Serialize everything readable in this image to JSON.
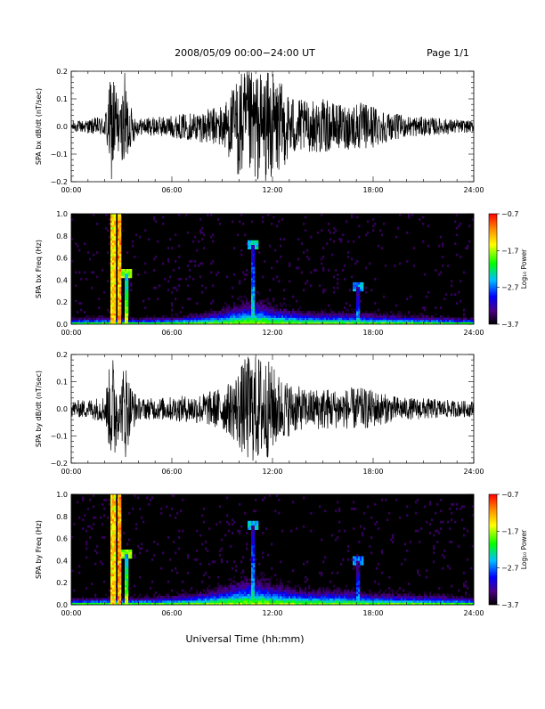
{
  "header": {
    "date_range": "2008/05/09  00:00−24:00 UT",
    "page": "Page 1/1"
  },
  "x_axis_title": "Universal Time (hh:mm)",
  "chart_data": [
    {
      "type": "line",
      "ylabel": "SPA bx dB/dt (nT/sec)",
      "xlim": [
        0,
        24
      ],
      "ylim": [
        -0.2,
        0.2
      ],
      "x_ticks": [
        "00:00",
        "06:00",
        "12:00",
        "18:00",
        "24:00"
      ],
      "y_ticks": [
        "0.2",
        "0.1",
        "0.0",
        "−0.1",
        "−0.2"
      ],
      "envelope": {
        "x_hours": [
          0,
          1,
          2,
          2.4,
          2.6,
          2.9,
          3.2,
          3.5,
          4,
          5,
          6,
          7,
          8,
          9,
          9.5,
          10,
          10.5,
          11,
          11.5,
          12,
          12.5,
          13,
          14,
          15,
          16,
          17,
          18,
          19,
          20,
          21,
          22,
          23,
          24
        ],
        "amplitude": [
          0.02,
          0.025,
          0.04,
          0.2,
          0.2,
          0.06,
          0.2,
          0.08,
          0.03,
          0.035,
          0.04,
          0.05,
          0.06,
          0.08,
          0.12,
          0.2,
          0.2,
          0.2,
          0.2,
          0.2,
          0.16,
          0.12,
          0.09,
          0.1,
          0.08,
          0.09,
          0.08,
          0.05,
          0.04,
          0.035,
          0.03,
          0.025,
          0.02
        ]
      }
    },
    {
      "type": "heatmap",
      "ylabel": "SPA bx Freq (Hz)",
      "xlim": [
        0,
        24
      ],
      "ylim": [
        0.0,
        1.0
      ],
      "x_ticks": [
        "00:00",
        "06:00",
        "12:00",
        "18:00",
        "24:00"
      ],
      "y_ticks": [
        "1.0",
        "0.8",
        "0.6",
        "0.4",
        "0.2",
        "0.0"
      ],
      "colorbar": {
        "label": "Log₁₀ Power",
        "ticks": [
          "−0.7",
          "−1.7",
          "−2.7",
          "−3.7"
        ],
        "range": [
          -3.7,
          -0.7
        ]
      },
      "features": [
        {
          "x_hours": 2.5,
          "f_max": 1.0,
          "power": -1.2
        },
        {
          "x_hours": 2.9,
          "f_max": 1.0,
          "power": -1.0
        },
        {
          "x_hours": 3.3,
          "f_max": 0.45,
          "power": -1.6
        },
        {
          "x_hours": 10.8,
          "f_max": 0.72,
          "power": -2.2
        },
        {
          "x_hours": 17.1,
          "f_max": 0.33,
          "power": -2.4
        }
      ],
      "low_band_level": [
        {
          "x_hours": [
            0,
            2,
            4,
            6,
            8,
            9,
            10,
            11,
            12,
            13,
            14,
            16,
            18,
            20,
            22,
            24
          ],
          "f_extent": [
            0.04,
            0.05,
            0.04,
            0.05,
            0.07,
            0.1,
            0.14,
            0.16,
            0.12,
            0.1,
            0.08,
            0.08,
            0.07,
            0.06,
            0.05,
            0.04
          ]
        }
      ]
    },
    {
      "type": "line",
      "ylabel": "SPA by dB/dt (nT/sec)",
      "xlim": [
        0,
        24
      ],
      "ylim": [
        -0.2,
        0.2
      ],
      "x_ticks": [
        "00:00",
        "06:00",
        "12:00",
        "18:00",
        "24:00"
      ],
      "y_ticks": [
        "0.2",
        "0.1",
        "0.0",
        "−0.1",
        "−0.2"
      ],
      "envelope": {
        "x_hours": [
          0,
          1,
          2,
          2.4,
          2.6,
          2.9,
          3.2,
          3.5,
          4,
          5,
          6,
          7,
          8,
          9,
          9.5,
          10,
          10.5,
          11,
          11.5,
          12,
          12.5,
          13,
          14,
          15,
          16,
          17,
          18,
          19,
          20,
          21,
          22,
          23,
          24
        ],
        "amplitude": [
          0.03,
          0.035,
          0.05,
          0.2,
          0.2,
          0.07,
          0.2,
          0.1,
          0.04,
          0.04,
          0.045,
          0.05,
          0.06,
          0.08,
          0.1,
          0.15,
          0.2,
          0.2,
          0.2,
          0.16,
          0.12,
          0.1,
          0.07,
          0.08,
          0.07,
          0.08,
          0.07,
          0.05,
          0.04,
          0.04,
          0.035,
          0.03,
          0.03
        ]
      }
    },
    {
      "type": "heatmap",
      "ylabel": "SPA by Freq (Hz)",
      "xlim": [
        0,
        24
      ],
      "ylim": [
        0.0,
        1.0
      ],
      "x_ticks": [
        "00:00",
        "06:00",
        "12:00",
        "18:00",
        "24:00"
      ],
      "y_ticks": [
        "1.0",
        "0.8",
        "0.6",
        "0.4",
        "0.2",
        "0.0"
      ],
      "colorbar": {
        "label": "Log₁₀ Power",
        "ticks": [
          "−0.7",
          "−1.7",
          "−2.7",
          "−3.7"
        ],
        "range": [
          -3.7,
          -0.7
        ]
      },
      "features": [
        {
          "x_hours": 2.5,
          "f_max": 1.0,
          "power": -1.2
        },
        {
          "x_hours": 2.9,
          "f_max": 1.0,
          "power": -1.0
        },
        {
          "x_hours": 3.3,
          "f_max": 0.45,
          "power": -1.6
        },
        {
          "x_hours": 10.8,
          "f_max": 0.72,
          "power": -2.3
        },
        {
          "x_hours": 17.1,
          "f_max": 0.4,
          "power": -2.5
        }
      ],
      "low_band_level": [
        {
          "x_hours": [
            0,
            2,
            4,
            6,
            8,
            9,
            10,
            11,
            12,
            13,
            14,
            16,
            18,
            20,
            22,
            24
          ],
          "f_extent": [
            0.04,
            0.05,
            0.05,
            0.06,
            0.09,
            0.12,
            0.16,
            0.18,
            0.14,
            0.12,
            0.1,
            0.1,
            0.08,
            0.07,
            0.06,
            0.05
          ]
        }
      ]
    }
  ]
}
